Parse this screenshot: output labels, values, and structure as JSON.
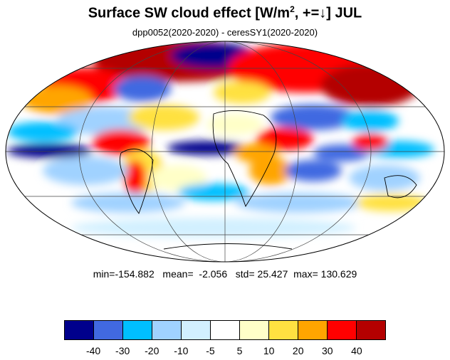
{
  "title": {
    "main": "Surface SW cloud effect [W/m",
    "sup": "2",
    "after": ", +=↓]  JUL"
  },
  "subtitle": "dpp0052(2020-2020) - ceresSY1(2020-2020)",
  "stats": {
    "min_label": "min=",
    "min": "-154.882",
    "mean_label": "mean=",
    "mean": "-2.056",
    "std_label": "std=",
    "std": "25.427",
    "max_label": "max=",
    "max": "130.629"
  },
  "colorbar": {
    "colors": [
      "#00008c",
      "#4169e1",
      "#00bfff",
      "#a0d2ff",
      "#d2f0ff",
      "#ffffff",
      "#ffffc8",
      "#ffe141",
      "#ffa500",
      "#ff0000",
      "#b40000"
    ],
    "labels": [
      "-40",
      "-30",
      "-20",
      "-10",
      "-5",
      "5",
      "10",
      "20",
      "30",
      "40"
    ]
  },
  "map": {
    "projection": "mollweide",
    "ocean_color": "#ffffff"
  }
}
